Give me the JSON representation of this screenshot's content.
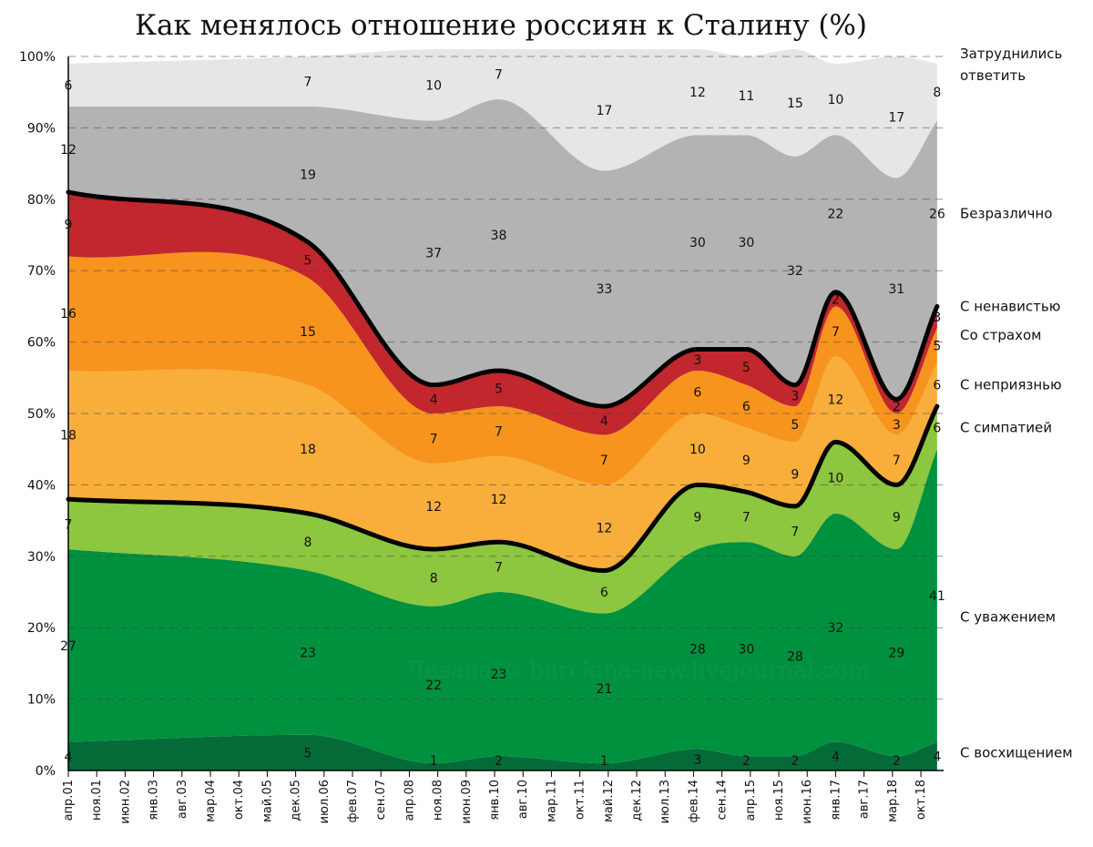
{
  "chart_data": {
    "type": "area",
    "title": "Как менялось отношение россиян к Сталину (%)",
    "watermark": "Левада © burckina-new.livejournal.com",
    "ylim": [
      0,
      100
    ],
    "y_ticks": [
      "0%",
      "10%",
      "20%",
      "30%",
      "40%",
      "50%",
      "60%",
      "70%",
      "80%",
      "90%",
      "100%"
    ],
    "x_ticks": [
      "апр.01",
      "ноя.01",
      "июн.02",
      "янв.03",
      "авг.03",
      "мар.04",
      "окт.04",
      "май.05",
      "дек.05",
      "июл.06",
      "фев.07",
      "сен.07",
      "апр.08",
      "ноя.08",
      "июн.09",
      "янв.10",
      "авг.10",
      "мар.11",
      "окт.11",
      "май.12",
      "дек.12",
      "июл.13",
      "фев.14",
      "сен.14",
      "апр.15",
      "ноя.15",
      "июн.16",
      "янв.17",
      "авг.17",
      "мар.18",
      "окт.18"
    ],
    "grid": true,
    "legend_position": "right",
    "survey_points": [
      "апр.01",
      "мар.06",
      "окт.08",
      "фев.10",
      "апр.12",
      "мар.14",
      "мар.15",
      "мар.16",
      "янв.17",
      "апр.18",
      "фев.19"
    ],
    "series": [
      {
        "name": "С восхищением",
        "color": "#046b38",
        "values": [
          4,
          5,
          1,
          2,
          1,
          3,
          2,
          2,
          4,
          2,
          4
        ]
      },
      {
        "name": "С уважением",
        "color": "#00913f",
        "values": [
          27,
          23,
          22,
          23,
          21,
          28,
          30,
          28,
          32,
          29,
          41
        ]
      },
      {
        "name": "С симпатией",
        "color": "#8dc63f",
        "values": [
          7,
          8,
          8,
          7,
          6,
          9,
          7,
          7,
          10,
          9,
          6
        ]
      },
      {
        "name": "С неприязнью",
        "color": "#f9ae3b",
        "values": [
          18,
          18,
          12,
          12,
          12,
          10,
          9,
          9,
          12,
          7,
          6
        ]
      },
      {
        "name": "Со страхом",
        "color": "#f7941d",
        "values": [
          16,
          15,
          7,
          7,
          7,
          6,
          6,
          5,
          7,
          3,
          5
        ]
      },
      {
        "name": "С ненавистью",
        "color": "#c1272d",
        "values": [
          9,
          5,
          4,
          5,
          4,
          3,
          5,
          3,
          2,
          2,
          3
        ]
      },
      {
        "name": "Безразлично",
        "color": "#b3b3b3",
        "values": [
          12,
          19,
          37,
          38,
          33,
          30,
          30,
          32,
          22,
          31,
          26
        ]
      },
      {
        "name": "Затруднились ответить",
        "color": "#e6e6e6",
        "values": [
          6,
          7,
          10,
          7,
          17,
          12,
          11,
          15,
          10,
          17,
          8
        ]
      }
    ]
  },
  "legend": [
    {
      "line1": "Затруднились",
      "line2": "ответить"
    },
    {
      "line1": "Безразлично",
      "line2": ""
    },
    {
      "line1": "С ненавистью",
      "line2": ""
    },
    {
      "line1": "Со страхом",
      "line2": ""
    },
    {
      "line1": "С неприязнью",
      "line2": ""
    },
    {
      "line1": "С симпатией",
      "line2": ""
    },
    {
      "line1": "С уважением",
      "line2": ""
    },
    {
      "line1": "С восхищением",
      "line2": ""
    }
  ]
}
